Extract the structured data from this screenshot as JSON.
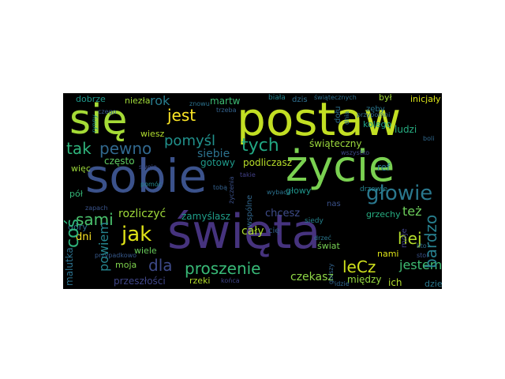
{
  "words": [
    {
      "text": "postaw",
      "color": "#c2df23"
    },
    {
      "text": "się",
      "color": "#a5db36"
    },
    {
      "text": "życie",
      "color": "#7ad151"
    },
    {
      "text": "sobie",
      "color": "#3b528b"
    },
    {
      "text": "święta",
      "color": "#46337e"
    },
    {
      "text": "głowie",
      "color": "#2a788e"
    },
    {
      "text": "jest",
      "color": "#fde725"
    },
    {
      "text": "tak",
      "color": "#2fb47c"
    },
    {
      "text": "pewno",
      "color": "#31688e"
    },
    {
      "text": "pomyśl",
      "color": "#21918c"
    },
    {
      "text": "tych",
      "color": "#22a884"
    },
    {
      "text": "sami",
      "color": "#4ac16d"
    },
    {
      "text": "jak",
      "color": "#dfe318"
    },
    {
      "text": "coś",
      "color": "#2fb47c"
    },
    {
      "text": "hej",
      "color": "#b5de2b"
    },
    {
      "text": "bardzo",
      "color": "#277f8e"
    },
    {
      "text": "dla",
      "color": "#3e4a89"
    },
    {
      "text": "leCz",
      "color": "#cfe11c"
    },
    {
      "text": "proszenie",
      "color": "#38b977"
    },
    {
      "text": "powiem",
      "color": "#25848e"
    },
    {
      "text": "też",
      "color": "#6ccd5a"
    },
    {
      "text": "jestem",
      "color": "#3fbc73"
    },
    {
      "text": "czekasz",
      "color": "#8ed645"
    },
    {
      "text": "rok",
      "color": "#287c8e"
    },
    {
      "text": "dni",
      "color": "#fde725"
    },
    {
      "text": "cały",
      "color": "#addc30"
    },
    {
      "text": "siebie",
      "color": "#2c728e"
    },
    {
      "text": "często",
      "color": "#5ec962"
    },
    {
      "text": "gotowy",
      "color": "#1f998a"
    },
    {
      "text": "podliczasz",
      "color": "#b8de29"
    },
    {
      "text": "świąteczny",
      "color": "#9bd93c"
    },
    {
      "text": "rozliczyć",
      "color": "#9fda3a"
    },
    {
      "text": "zamyślasz",
      "color": "#1f9e89"
    },
    {
      "text": "chcesz",
      "color": "#3e4c8a"
    },
    {
      "text": "nami",
      "color": "#dde318"
    },
    {
      "text": "między",
      "color": "#95d840"
    },
    {
      "text": "ich",
      "color": "#b2dd2d"
    },
    {
      "text": "przeszłości",
      "color": "#404688"
    },
    {
      "text": "rzeki",
      "color": "#b5de2b"
    },
    {
      "text": "moja",
      "color": "#7fd34e"
    },
    {
      "text": "wiele",
      "color": "#69cd5b"
    },
    {
      "text": "malutka",
      "color": "#2c728e"
    },
    {
      "text": "ludzi",
      "color": "#27ad81"
    },
    {
      "text": "kolego",
      "color": "#1fa088"
    },
    {
      "text": "grzechy",
      "color": "#26ad81"
    },
    {
      "text": "dzien",
      "color": "#2a788e"
    },
    {
      "text": "świat",
      "color": "#77d153"
    },
    {
      "text": "dobrze",
      "color": "#1f988b"
    },
    {
      "text": "niezła",
      "color": "#a0da39"
    },
    {
      "text": "martw",
      "color": "#3dbc74"
    },
    {
      "text": "był",
      "color": "#a2da37"
    },
    {
      "text": "inicjały",
      "color": "#dae319"
    },
    {
      "text": "wiesz",
      "color": "#b0dd2f"
    },
    {
      "text": "więc",
      "color": "#9dd93b"
    },
    {
      "text": "góry",
      "color": "#2e6f8e"
    },
    {
      "text": "pół",
      "color": "#35b779"
    },
    {
      "text": "ref",
      "color": "#297a8e"
    },
    {
      "text": "głowy",
      "color": "#1f958b"
    },
    {
      "text": "dzis",
      "color": "#2e6e8e"
    },
    {
      "text": "biała",
      "color": "#25858e"
    },
    {
      "text": "wspólne",
      "color": "#31678e"
    },
    {
      "text": "zęby",
      "color": "#2a768e"
    },
    {
      "text": "dołu",
      "color": "#2d708e"
    },
    {
      "text": "nas",
      "color": "#3b528b"
    },
    {
      "text": "cię",
      "color": "#34608d"
    },
    {
      "text": "moje",
      "color": "#404387"
    },
    {
      "text": "przypomni",
      "color": "#30698e"
    },
    {
      "text": "świątecznych",
      "color": "#2e6f8e"
    },
    {
      "text": "siedy",
      "color": "#25838e"
    },
    {
      "text": "drzeć",
      "color": "#2a778e"
    },
    {
      "text": "przypadkowo",
      "color": "#37598c"
    },
    {
      "text": "drzewie",
      "color": "#26828e"
    },
    {
      "text": "dnia",
      "color": "#2c738e"
    },
    {
      "text": "wybacz",
      "color": "#2c718e"
    },
    {
      "text": "życzenia",
      "color": "#3b518b"
    },
    {
      "text": "pomóc",
      "color": "#24868e"
    },
    {
      "text": "gorszy",
      "color": "#33638d"
    },
    {
      "text": "zapach",
      "color": "#3a548c"
    },
    {
      "text": "kto",
      "color": "#2e6d8e"
    },
    {
      "text": "stoi",
      "color": "#3a538b"
    },
    {
      "text": "końca",
      "color": "#404588"
    },
    {
      "text": "idzie",
      "color": "#31678e"
    },
    {
      "text": "czego",
      "color": "#38588c"
    },
    {
      "text": "rynny",
      "color": "#20938c"
    },
    {
      "text": "znowu",
      "color": "#2c728e"
    },
    {
      "text": "trzeba",
      "color": "#33628d"
    },
    {
      "text": "swoje",
      "color": "#3d4e8a"
    },
    {
      "text": "takie",
      "color": "#424086"
    },
    {
      "text": "boli",
      "color": "#30698e"
    },
    {
      "text": "wszystko",
      "color": "#3f4889"
    },
    {
      "text": "tobą",
      "color": "#34618d"
    }
  ]
}
